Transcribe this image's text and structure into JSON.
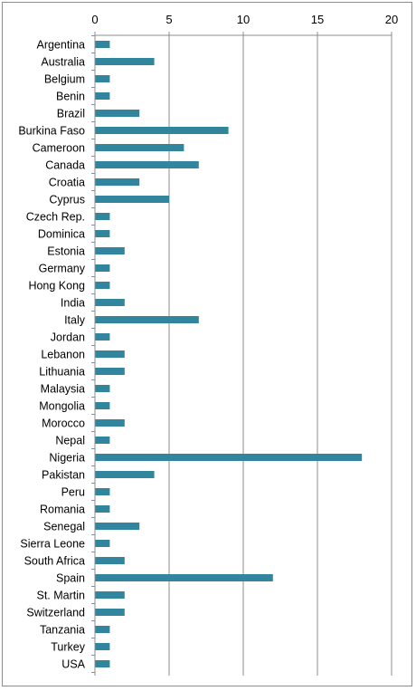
{
  "chart_data": {
    "type": "bar",
    "orientation": "horizontal",
    "categories": [
      "Argentina",
      "Australia",
      "Belgium",
      "Benin",
      "Brazil",
      "Burkina Faso",
      "Cameroon",
      "Canada",
      "Croatia",
      "Cyprus",
      "Czech Rep.",
      "Dominica",
      "Estonia",
      "Germany",
      "Hong Kong",
      "India",
      "Italy",
      "Jordan",
      "Lebanon",
      "Lithuania",
      "Malaysia",
      "Mongolia",
      "Morocco",
      "Nepal",
      "Nigeria",
      "Pakistan",
      "Peru",
      "Romania",
      "Senegal",
      "Sierra Leone",
      "South Africa",
      "Spain",
      "St. Martin",
      "Switzerland",
      "Tanzania",
      "Turkey",
      "USA"
    ],
    "values": [
      1,
      4,
      1,
      1,
      3,
      9,
      6,
      7,
      3,
      5,
      1,
      1,
      2,
      1,
      1,
      2,
      7,
      1,
      2,
      2,
      1,
      1,
      2,
      1,
      18,
      4,
      1,
      1,
      3,
      1,
      2,
      12,
      2,
      2,
      1,
      1,
      1
    ],
    "xlim": [
      0,
      20
    ],
    "xticks": [
      0,
      5,
      10,
      15,
      20
    ],
    "axis_position": "top",
    "grid": "vertical",
    "legend": "none",
    "bar_color": "#31859c",
    "title": "",
    "xlabel": "",
    "ylabel": ""
  }
}
